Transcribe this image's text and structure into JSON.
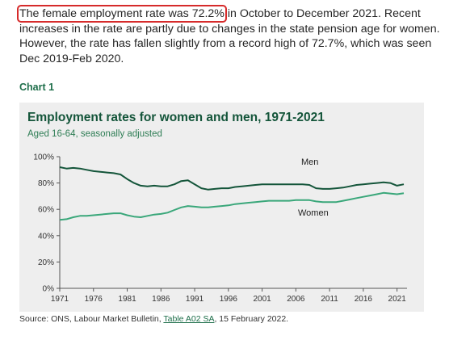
{
  "intro": {
    "highlight": "The female employment rate was 72.2%",
    "rest": " in October to December 2021. Recent increases in the rate are partly due to changes in the state pension age for women. However, the rate has fallen slightly from a record high of 72.7%, which was seen Dec 2019-Feb 2020."
  },
  "chart_label": "Chart 1",
  "colors": {
    "accent": "#1e6e4a",
    "highlight_box": "#d62b2b",
    "men": "#14553a",
    "women": "#3aa77a"
  },
  "chart_data": {
    "type": "line",
    "title": "Employment rates for women and men, 1971-2021",
    "subtitle": "Aged 16-64, seasonally adjusted",
    "xlabel": "",
    "ylabel": "",
    "xlim": [
      1971,
      2022
    ],
    "ylim": [
      0,
      100
    ],
    "x_ticks": [
      "1971",
      "1976",
      "1981",
      "1986",
      "1991",
      "1996",
      "2001",
      "2006",
      "2011",
      "2016",
      "2021"
    ],
    "y_ticks": [
      "0%",
      "20%",
      "40%",
      "60%",
      "80%",
      "100%"
    ],
    "grid": false,
    "series": [
      {
        "name": "Men",
        "x": [
          1971,
          1972,
          1973,
          1974,
          1975,
          1976,
          1977,
          1978,
          1979,
          1980,
          1981,
          1982,
          1983,
          1984,
          1985,
          1986,
          1987,
          1988,
          1989,
          1990,
          1991,
          1992,
          1993,
          1994,
          1995,
          1996,
          1997,
          1998,
          1999,
          2000,
          2001,
          2002,
          2003,
          2004,
          2005,
          2006,
          2007,
          2008,
          2009,
          2010,
          2011,
          2012,
          2013,
          2014,
          2015,
          2016,
          2017,
          2018,
          2019,
          2020,
          2021,
          2022
        ],
        "values": [
          92,
          91,
          91.5,
          91,
          90,
          89,
          88.5,
          88,
          87.5,
          86.5,
          83,
          80,
          78,
          77.5,
          78,
          77.5,
          77.5,
          79,
          81.5,
          82,
          79,
          76,
          75,
          75.5,
          76,
          76,
          77,
          77.5,
          78,
          78.5,
          79,
          79,
          79,
          79,
          79,
          79,
          79,
          78.5,
          76,
          75.5,
          75.5,
          76,
          76.5,
          77.5,
          78.5,
          79,
          79.5,
          80,
          80.5,
          80,
          78,
          79
        ]
      },
      {
        "name": "Women",
        "x": [
          1971,
          1972,
          1973,
          1974,
          1975,
          1976,
          1977,
          1978,
          1979,
          1980,
          1981,
          1982,
          1983,
          1984,
          1985,
          1986,
          1987,
          1988,
          1989,
          1990,
          1991,
          1992,
          1993,
          1994,
          1995,
          1996,
          1997,
          1998,
          1999,
          2000,
          2001,
          2002,
          2003,
          2004,
          2005,
          2006,
          2007,
          2008,
          2009,
          2010,
          2011,
          2012,
          2013,
          2014,
          2015,
          2016,
          2017,
          2018,
          2019,
          2020,
          2021,
          2022
        ],
        "values": [
          52,
          52.5,
          54,
          55,
          55,
          55.5,
          56,
          56.5,
          57,
          57,
          55.5,
          54.5,
          54,
          55,
          56,
          56.5,
          57.5,
          59.5,
          61.5,
          62.5,
          62,
          61.5,
          61.5,
          62,
          62.5,
          63,
          64,
          64.5,
          65,
          65.5,
          66,
          66.5,
          66.5,
          66.5,
          66.5,
          67,
          67,
          67,
          66,
          65.5,
          65.5,
          65.5,
          66.5,
          67.5,
          68.5,
          69.5,
          70.5,
          71.5,
          72.5,
          72,
          71.5,
          72.2
        ]
      }
    ]
  },
  "source": {
    "prefix": "Source: ONS, Labour Market Bulletin, ",
    "link": "Table A02 SA",
    "suffix": ", 15 February 2022."
  }
}
